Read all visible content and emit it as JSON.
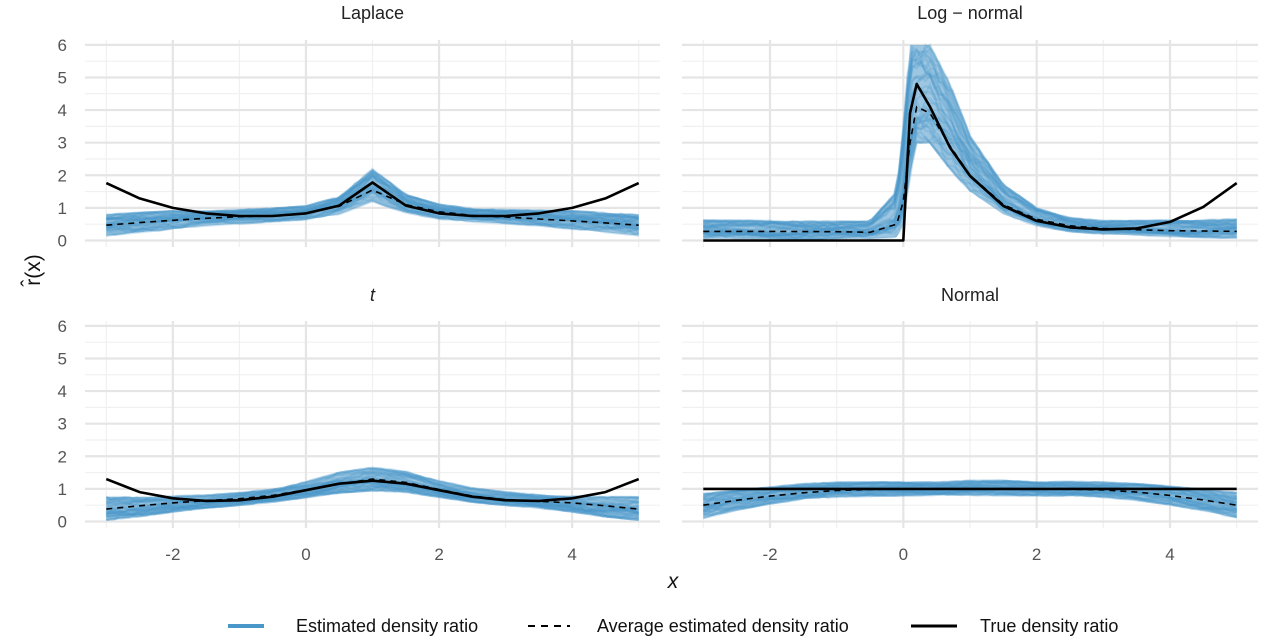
{
  "chart_data": {
    "type": "line",
    "layout": "facet-2x2",
    "xlabel": "x",
    "ylabel": "r̂(x)",
    "xlim": [
      -3,
      5
    ],
    "ylim": [
      0,
      6
    ],
    "xticks": [
      -2,
      0,
      2,
      4
    ],
    "yticks": [
      0,
      1,
      2,
      3,
      4,
      5,
      6
    ],
    "grid": true,
    "legend": {
      "placement": "bottom",
      "entries": [
        "Estimated density ratio",
        "Average estimated density ratio",
        "True density ratio"
      ]
    },
    "colors": {
      "estimated": "#3f93c7",
      "average": "#000000",
      "true": "#000000"
    },
    "panels": [
      {
        "title": "Laplace",
        "title_italic": false,
        "x": [
          -3,
          -2.5,
          -2,
          -1.5,
          -1,
          -0.5,
          0,
          0.5,
          1,
          1.5,
          2,
          2.5,
          3,
          3.5,
          4,
          4.5,
          5
        ],
        "series": [
          {
            "name": "True density ratio",
            "values": [
              1.76,
              1.29,
              1.0,
              0.83,
              0.75,
              0.75,
              0.83,
              1.07,
              1.78,
              1.07,
              0.83,
              0.75,
              0.75,
              0.83,
              1.0,
              1.29,
              1.76
            ]
          },
          {
            "name": "Average estimated density ratio",
            "values": [
              0.47,
              0.55,
              0.62,
              0.68,
              0.73,
              0.76,
              0.84,
              1.05,
              1.55,
              1.1,
              0.88,
              0.77,
              0.72,
              0.66,
              0.6,
              0.54,
              0.47
            ]
          },
          {
            "name": "Estimated density ratio band low",
            "values": [
              0.15,
              0.25,
              0.35,
              0.45,
              0.52,
              0.57,
              0.64,
              0.8,
              1.2,
              0.85,
              0.66,
              0.57,
              0.52,
              0.45,
              0.35,
              0.25,
              0.15
            ]
          },
          {
            "name": "Estimated density ratio band high",
            "values": [
              0.8,
              0.85,
              0.9,
              0.92,
              0.95,
              0.98,
              1.05,
              1.35,
              2.2,
              1.4,
              1.1,
              0.98,
              0.95,
              0.92,
              0.9,
              0.85,
              0.8
            ]
          }
        ]
      },
      {
        "title": "Log − normal",
        "title_italic": false,
        "x": [
          -3,
          -2,
          -1,
          -0.5,
          -0.1,
          0,
          0.1,
          0.2,
          0.4,
          0.7,
          1,
          1.5,
          2,
          2.5,
          3,
          3.5,
          4,
          4.5,
          5
        ],
        "series": [
          {
            "name": "True density ratio",
            "values": [
              0,
              0,
              0,
              0,
              0,
              0,
              3.9,
              4.8,
              4.1,
              2.85,
              1.98,
              1.06,
              0.6,
              0.4,
              0.34,
              0.37,
              0.57,
              1.03,
              1.76
            ]
          },
          {
            "name": "Average estimated density ratio",
            "values": [
              0.28,
              0.28,
              0.27,
              0.25,
              0.5,
              1.2,
              3.0,
              4.1,
              3.9,
              2.9,
              2.0,
              1.1,
              0.65,
              0.45,
              0.37,
              0.33,
              0.3,
              0.29,
              0.28
            ]
          },
          {
            "name": "Estimated density ratio band low",
            "values": [
              0.05,
              0.05,
              0.05,
              0.05,
              0.1,
              0.5,
              2.0,
              3.0,
              3.0,
              2.2,
              1.5,
              0.8,
              0.45,
              0.28,
              0.2,
              0.15,
              0.12,
              0.1,
              0.08
            ]
          },
          {
            "name": "Estimated density ratio band high",
            "values": [
              0.62,
              0.6,
              0.58,
              0.58,
              1.5,
              3.5,
              6.0,
              6.0,
              6.0,
              4.8,
              3.2,
              1.7,
              1.0,
              0.7,
              0.6,
              0.6,
              0.62,
              0.63,
              0.65
            ]
          }
        ]
      },
      {
        "title": "t",
        "title_italic": true,
        "x": [
          -3,
          -2.5,
          -2,
          -1.5,
          -1,
          -0.5,
          0,
          0.5,
          1,
          1.5,
          2,
          2.5,
          3,
          3.5,
          4,
          4.5,
          5
        ],
        "series": [
          {
            "name": "True density ratio",
            "values": [
              1.3,
              0.9,
              0.71,
              0.63,
              0.65,
              0.76,
              0.96,
              1.16,
              1.25,
              1.16,
              0.96,
              0.76,
              0.65,
              0.63,
              0.71,
              0.9,
              1.3
            ]
          },
          {
            "name": "Average estimated density ratio",
            "values": [
              0.38,
              0.48,
              0.57,
              0.64,
              0.7,
              0.8,
              0.97,
              1.15,
              1.3,
              1.2,
              0.98,
              0.78,
              0.67,
              0.62,
              0.57,
              0.48,
              0.38
            ]
          },
          {
            "name": "Estimated density ratio band low",
            "values": [
              0.05,
              0.15,
              0.3,
              0.42,
              0.5,
              0.6,
              0.74,
              0.88,
              0.95,
              0.9,
              0.75,
              0.6,
              0.5,
              0.42,
              0.3,
              0.15,
              0.05
            ]
          },
          {
            "name": "Estimated density ratio band high",
            "values": [
              0.75,
              0.75,
              0.78,
              0.8,
              0.88,
              1.0,
              1.22,
              1.5,
              1.65,
              1.55,
              1.25,
              1.02,
              0.9,
              0.82,
              0.78,
              0.75,
              0.75
            ]
          }
        ]
      },
      {
        "title": "Normal",
        "title_italic": false,
        "x": [
          -3,
          -2.5,
          -2,
          -1.5,
          -1,
          -0.5,
          0,
          0.5,
          1,
          1.5,
          2,
          2.5,
          3,
          3.5,
          4,
          4.5,
          5
        ],
        "series": [
          {
            "name": "True density ratio",
            "values": [
              1,
              1,
              1,
              1,
              1,
              1,
              1,
              1,
              1,
              1,
              1,
              1,
              1,
              1,
              1,
              1,
              1
            ]
          },
          {
            "name": "Average estimated density ratio",
            "values": [
              0.5,
              0.65,
              0.78,
              0.88,
              0.95,
              0.98,
              1.0,
              1.0,
              1.0,
              1.0,
              1.0,
              0.99,
              0.97,
              0.9,
              0.8,
              0.66,
              0.5
            ]
          },
          {
            "name": "Estimated density ratio band low",
            "values": [
              0.1,
              0.35,
              0.55,
              0.68,
              0.75,
              0.78,
              0.8,
              0.8,
              0.8,
              0.8,
              0.8,
              0.78,
              0.74,
              0.65,
              0.52,
              0.33,
              0.1
            ]
          },
          {
            "name": "Estimated density ratio band high",
            "values": [
              0.85,
              0.95,
              1.05,
              1.15,
              1.2,
              1.2,
              1.2,
              1.2,
              1.25,
              1.25,
              1.2,
              1.22,
              1.2,
              1.15,
              1.08,
              0.97,
              0.88
            ]
          }
        ]
      }
    ]
  }
}
